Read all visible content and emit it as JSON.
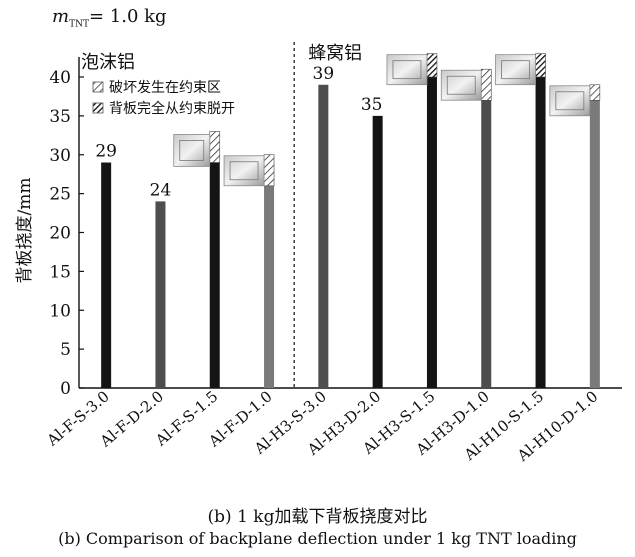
{
  "mass_label": {
    "symbol": "m",
    "subscript": "TNT",
    "value": "= 1.0 kg"
  },
  "caption_cn": "(b) 1 kg加载下背板挠度对比",
  "caption_en": "(b) Comparison of backplane deflection under 1 kg TNT loading",
  "chart_data": {
    "type": "bar",
    "ylabel": "背板挠度/mm",
    "xlabel": "",
    "ylim": [
      0,
      40
    ],
    "yticks": [
      0,
      5,
      10,
      15,
      20,
      25,
      30,
      35,
      40
    ],
    "grid": false,
    "group_labels": [
      "泡沫铝",
      "蜂窝铝"
    ],
    "categories": [
      "Al-F-S-3.0",
      "Al-F-D-2.0",
      "Al-F-S-1.5",
      "Al-F-D-1.0",
      "Al-H3-S-3.0",
      "Al-H3-D-2.0",
      "Al-H3-S-1.5",
      "Al-H3-D-1.0",
      "Al-H10-S-1.5",
      "Al-H10-D-1.0"
    ],
    "values": [
      29,
      24,
      29,
      26,
      39,
      35,
      40,
      37,
      40,
      37
    ],
    "data_labels": [
      "29",
      "24",
      "",
      "",
      "39",
      "35",
      "",
      "",
      "",
      ""
    ],
    "colors": [
      "#141414",
      "#4d4d4d",
      "#141414",
      "#7a7a7a",
      "#4d4d4d",
      "#141414",
      "#141414",
      "#4d4d4d",
      "#141414",
      "#7a7a7a"
    ],
    "hatch_extension": [
      0,
      0,
      4,
      4,
      0,
      0,
      3,
      4,
      3,
      2
    ],
    "hatch_type": [
      "",
      "",
      "boundary",
      "boundary",
      "",
      "",
      "detached",
      "boundary",
      "detached",
      "boundary"
    ],
    "legend": [
      {
        "label": "破坏发生在约束区",
        "style": "boundary"
      },
      {
        "label": "背板完全从约束脱开",
        "style": "detached"
      }
    ],
    "legend_placement": "top-left"
  }
}
